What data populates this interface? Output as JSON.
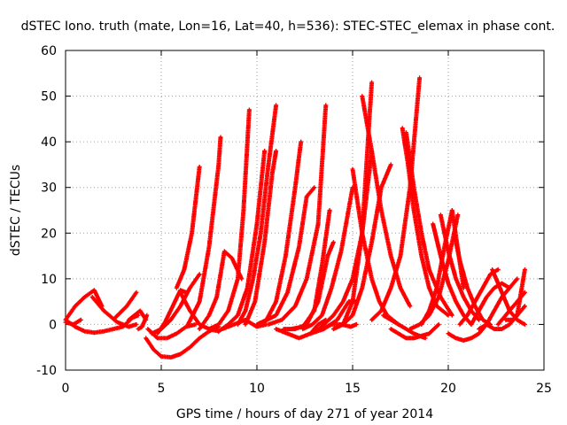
{
  "chart_data": {
    "type": "scatter",
    "title": "dSTEC Iono. truth (mate, Lon=16, Lat=40, h=536): STEC-STEC_elemax in phase cont.",
    "xlabel": "GPS time / hours of day 271 of year 2014",
    "ylabel": "dSTEC  / TECUs",
    "xlim": [
      0,
      25
    ],
    "ylim": [
      -10,
      60
    ],
    "xticks": [
      "0",
      "5",
      "10",
      "15",
      "20",
      "25"
    ],
    "yticks": [
      "-10",
      "0",
      "10",
      "20",
      "30",
      "40",
      "50",
      "60"
    ],
    "grid": true,
    "marker": "+",
    "color": "#ff0000",
    "series": [
      {
        "x": [
          0,
          0.5,
          1,
          1.5,
          1.9
        ],
        "y": [
          1,
          4,
          6,
          7.5,
          4
        ]
      },
      {
        "x": [
          0,
          0.5,
          1.0,
          1.5,
          2.0,
          2.5,
          3.0,
          3.5,
          3.8
        ],
        "y": [
          1,
          -0.5,
          -1.5,
          -1.8,
          -1.5,
          -1,
          -0.5,
          1.5,
          2
        ]
      },
      {
        "x": [
          0,
          0.4,
          0.8
        ],
        "y": [
          0.5,
          0,
          1
        ]
      },
      {
        "x": [
          1.4,
          2.0,
          2.7,
          3.3,
          3.7
        ],
        "y": [
          6,
          3,
          0.5,
          -0.5,
          0
        ]
      },
      {
        "x": [
          2.6,
          3.2,
          3.7
        ],
        "y": [
          1.5,
          4,
          7
        ]
      },
      {
        "x": [
          3.3,
          3.9,
          4.2
        ],
        "y": [
          1,
          3,
          1
        ]
      },
      {
        "x": [
          3.8,
          4.0,
          4.25
        ],
        "y": [
          -1,
          -0.5,
          2
        ]
      },
      {
        "x": [
          4.2,
          4.6,
          5.0,
          5.5,
          6.0,
          6.5,
          7.0,
          7.5,
          8.0
        ],
        "y": [
          -3,
          -5.5,
          -7,
          -7.2,
          -6.5,
          -5,
          -3,
          -1.5,
          -0.5
        ]
      },
      {
        "x": [
          4.3,
          4.8,
          5.3,
          5.8,
          6.3,
          6.8
        ],
        "y": [
          -1,
          -3,
          -3,
          -2,
          -0.5,
          0
        ]
      },
      {
        "x": [
          4.5,
          5.0,
          5.5,
          6.0,
          6.5,
          7.0
        ],
        "y": [
          -2,
          -1,
          1,
          4,
          8,
          11
        ]
      },
      {
        "x": [
          4.8,
          5.2,
          5.6,
          6.0,
          6.3
        ],
        "y": [
          -2,
          0.5,
          4,
          7.5,
          7
        ]
      },
      {
        "x": [
          5.8,
          6.2,
          6.6,
          7.0
        ],
        "y": [
          8,
          12,
          20,
          34.5
        ]
      },
      {
        "x": [
          6.0,
          6.5,
          7.0,
          7.5,
          8.0
        ],
        "y": [
          7,
          3,
          0,
          -1,
          -1.5
        ]
      },
      {
        "x": [
          6.4,
          7.0,
          7.5,
          8.0,
          8.1
        ],
        "y": [
          0,
          5,
          17,
          35,
          41
        ]
      },
      {
        "x": [
          7.0,
          7.5,
          7.9,
          8.3,
          8.7,
          9.2
        ],
        "y": [
          -1,
          2,
          6,
          16,
          14.5,
          10
        ]
      },
      {
        "x": [
          7.5,
          8.0,
          8.5,
          9.0,
          9.3,
          9.6
        ],
        "y": [
          -1,
          0,
          3,
          10,
          25,
          47
        ]
      },
      {
        "x": [
          8.0,
          8.5,
          9.0,
          9.5,
          10.0,
          10.4
        ],
        "y": [
          -1.5,
          0,
          2,
          8,
          22,
          38
        ]
      },
      {
        "x": [
          8.2,
          8.8,
          9.4,
          10.0,
          10.5
        ],
        "y": [
          -1,
          0,
          1,
          -0.5,
          0
        ]
      },
      {
        "x": [
          9.0,
          9.4,
          9.8,
          10.2,
          10.6,
          11.0
        ],
        "y": [
          0,
          3,
          10,
          20,
          35,
          48
        ]
      },
      {
        "x": [
          9.4,
          9.9,
          10.4,
          10.8,
          11.0
        ],
        "y": [
          0,
          5,
          18,
          33,
          38
        ]
      },
      {
        "x": [
          10.0,
          10.5,
          11.0,
          11.5,
          12.0,
          12.3
        ],
        "y": [
          0,
          1,
          5,
          15,
          30,
          40
        ]
      },
      {
        "x": [
          10.3,
          11.0,
          11.6,
          12.2,
          12.6,
          13.0
        ],
        "y": [
          0.5,
          2,
          7,
          17,
          28,
          30
        ]
      },
      {
        "x": [
          10.6,
          11.3,
          12.0,
          12.6,
          13.2,
          13.6
        ],
        "y": [
          0,
          1,
          4,
          10,
          22,
          48
        ]
      },
      {
        "x": [
          11.0,
          11.6,
          12.2,
          12.8,
          13.2,
          13.6
        ],
        "y": [
          -1,
          -2,
          -3,
          -2,
          0,
          1
        ]
      },
      {
        "x": [
          11.4,
          12.0,
          12.6,
          13.2,
          13.7,
          14.0
        ],
        "y": [
          -1,
          -1,
          0,
          5,
          15,
          18
        ]
      },
      {
        "x": [
          11.8,
          12.4,
          13.0,
          13.4,
          13.8
        ],
        "y": [
          -1,
          -0.5,
          3,
          13,
          25
        ]
      },
      {
        "x": [
          12.4,
          12.9,
          13.4,
          13.9,
          14.4,
          15.0
        ],
        "y": [
          -1,
          0,
          2,
          8,
          16,
          30
        ]
      },
      {
        "x": [
          12.8,
          13.5,
          14.2,
          14.8,
          15.2
        ],
        "y": [
          -2,
          -1,
          1,
          5,
          5
        ]
      },
      {
        "x": [
          13.1,
          13.5,
          14.0,
          14.5,
          15.0,
          15.5,
          16.0
        ],
        "y": [
          -1.5,
          0,
          2,
          5,
          10,
          20,
          38
        ]
      },
      {
        "x": [
          13.4,
          13.9,
          14.4,
          14.9,
          15.2
        ],
        "y": [
          -1,
          0,
          0,
          -0.5,
          0
        ]
      },
      {
        "x": [
          14.0,
          14.5,
          15.0,
          15.5,
          15.8,
          16.0
        ],
        "y": [
          -1,
          0,
          5,
          20,
          40,
          53
        ]
      },
      {
        "x": [
          14.5,
          15.0,
          15.5,
          16.0,
          16.5,
          17.0
        ],
        "y": [
          0,
          2,
          8,
          18,
          30,
          35
        ]
      },
      {
        "x": [
          15.0,
          15.5,
          16.0,
          16.4,
          16.8,
          17.4
        ],
        "y": [
          34,
          20,
          10,
          5,
          2,
          0
        ]
      },
      {
        "x": [
          15.5,
          16.0,
          16.5,
          17.0,
          17.5,
          18.0
        ],
        "y": [
          50,
          38,
          25,
          15,
          8,
          4
        ]
      },
      {
        "x": [
          16.0,
          16.5,
          17.0,
          17.5,
          18.0,
          18.5
        ],
        "y": [
          1,
          3,
          8,
          15,
          30,
          54
        ]
      },
      {
        "x": [
          16.6,
          17.0,
          17.4,
          17.8,
          18.2,
          18.8
        ],
        "y": [
          2,
          1,
          0,
          -1,
          -2,
          -3
        ]
      },
      {
        "x": [
          17.0,
          17.4,
          17.8,
          18.2,
          18.6,
          19.0,
          19.5
        ],
        "y": [
          -1,
          -2,
          -3,
          -3,
          -2.5,
          -2,
          0
        ]
      },
      {
        "x": [
          17.6,
          17.9,
          18.2,
          18.6,
          19.0,
          19.4,
          20.0
        ],
        "y": [
          43,
          35,
          25,
          15,
          8,
          4,
          2
        ]
      },
      {
        "x": [
          17.8,
          18.2,
          18.6,
          19.0,
          19.6,
          20.2
        ],
        "y": [
          42,
          30,
          20,
          12,
          6,
          2
        ]
      },
      {
        "x": [
          18.0,
          18.5,
          19.0,
          19.5,
          20.0,
          20.5
        ],
        "y": [
          -1,
          0,
          2,
          6,
          14,
          24
        ]
      },
      {
        "x": [
          18.6,
          19.0,
          19.4,
          19.8,
          20.2,
          20.8
        ],
        "y": [
          0,
          3,
          8,
          17,
          25,
          8
        ]
      },
      {
        "x": [
          19.2,
          19.6,
          20.0,
          20.4,
          20.8,
          21.2
        ],
        "y": [
          22,
          15,
          9,
          5,
          2,
          0
        ]
      },
      {
        "x": [
          19.6,
          20.0,
          20.4,
          20.8,
          21.2,
          21.6
        ],
        "y": [
          24,
          16,
          10,
          6,
          3,
          1
        ]
      },
      {
        "x": [
          20.0,
          20.4,
          20.8,
          21.2,
          21.6,
          22.0
        ],
        "y": [
          -2,
          -3,
          -3.5,
          -3,
          -2,
          0
        ]
      },
      {
        "x": [
          20.3,
          20.6,
          21.0,
          21.4,
          21.8,
          22.2
        ],
        "y": [
          20,
          14,
          8,
          4,
          1,
          0
        ]
      },
      {
        "x": [
          20.6,
          21.0,
          21.4,
          21.8,
          22.2,
          22.6
        ],
        "y": [
          0,
          2,
          5,
          8,
          11,
          12
        ]
      },
      {
        "x": [
          21.2,
          21.6,
          22.0,
          22.4,
          22.8,
          23.2
        ],
        "y": [
          0,
          3,
          6,
          8,
          9,
          8
        ]
      },
      {
        "x": [
          21.6,
          22.0,
          22.4,
          22.8,
          23.2,
          23.6
        ],
        "y": [
          -1,
          0,
          3,
          6,
          8,
          10
        ]
      },
      {
        "x": [
          22.0,
          22.4,
          22.8,
          23.2,
          23.6,
          24.0
        ],
        "y": [
          0,
          -1,
          -1,
          0,
          2,
          12
        ]
      },
      {
        "x": [
          22.3,
          22.6,
          22.9,
          23.2,
          23.6,
          24.0
        ],
        "y": [
          12,
          9,
          6,
          3,
          1,
          0
        ]
      },
      {
        "x": [
          22.6,
          23.0,
          23.4,
          23.8,
          24.0
        ],
        "y": [
          0,
          2,
          4,
          6,
          7
        ]
      },
      {
        "x": [
          23.0,
          23.4,
          23.8,
          24.0
        ],
        "y": [
          1,
          1,
          3,
          4
        ]
      }
    ]
  }
}
